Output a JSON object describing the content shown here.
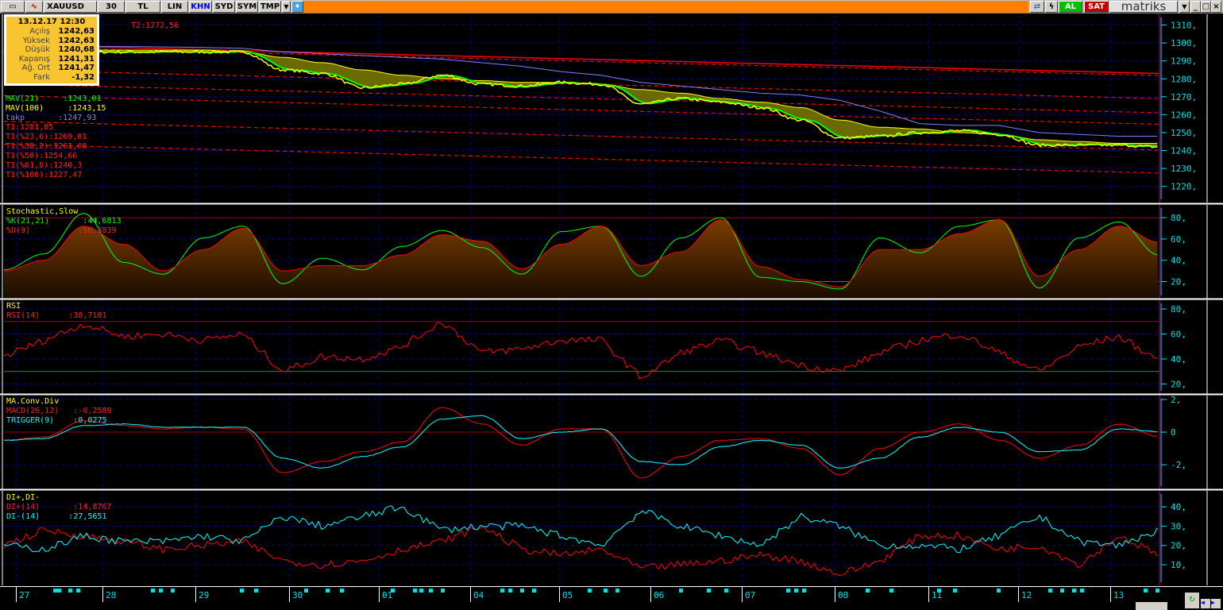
{
  "toolbar": {
    "symbol": "XAUUSD",
    "period": "30",
    "currency": "TL",
    "scale": "LIN",
    "kahn": "KHN",
    "syd": "SYD",
    "sym": "SYM",
    "tmp": "TMP",
    "buy": "AL",
    "sell": "SAT",
    "brand": "matriks",
    "icons": [
      "chart-type-icon",
      "indicator-icon",
      "dropdown-icon",
      "twitter-icon",
      "refresh-icon",
      "lightning-icon",
      "minimize-icon",
      "maximize-icon",
      "close-icon"
    ],
    "kahn_color": "#0000ff",
    "buy_color": "#00c000",
    "sell_color": "#c00000"
  },
  "info": {
    "datetime": "13.12.17 12:30",
    "rows": [
      {
        "label": "Açılış",
        "value": "1242,63"
      },
      {
        "label": "Yüksek",
        "value": "1242,63"
      },
      {
        "label": "Düşük",
        "value": "1240,68"
      },
      {
        "label": "Kapanış",
        "value": "1241,31"
      },
      {
        "label": "Ağ. Ort",
        "value": "1241,47"
      },
      {
        "label": "Fark",
        "value": "-1,32"
      }
    ]
  },
  "price_legend": {
    "t2": "T2:1272,56",
    "mav21": "MAV(21)     :1243,01",
    "mav100": "MAV(100)     :1243,15",
    "takp": "takp       :1247,93",
    "t1": "T1:1281,85",
    "t1_236": "T1(%23,6):1269,01",
    "t1_382": "T1(%38,2):1261,08",
    "t1_50": "T1(%50):1254,66",
    "t1_618": "T1(%61,8):1240,3",
    "t1_100": "T1(%100):1227,47"
  },
  "stoch_legend": {
    "title": "Stochastic,Slow",
    "k": "%K(21,21)       :44,6813",
    "d": "%D(9)          :56,5839"
  },
  "rsi_legend": {
    "title": "RSI",
    "rsi": "RSI(14)      :38,7181"
  },
  "macd_legend": {
    "title": "MA.Conv.Div",
    "macd": "MACD(26,12)   :-0,2589",
    "trigger": "TRIGGER(9)    :0,0275"
  },
  "di_legend": {
    "title": "DI+,DI-",
    "plus": "DI+(14)       :14,8767",
    "minus": "DI-(14)      :27,5651"
  },
  "time_axis": [
    "27",
    "28",
    "29",
    "30",
    "01",
    "04",
    "05",
    "06",
    "07",
    "08",
    "11",
    "12",
    "13"
  ],
  "colors": {
    "close": "#ffff00",
    "mav21": "#00ff00",
    "mav100": "#ffff00",
    "takp": "#8080ff",
    "fib": "#ff0000",
    "stochK": "#00ff00",
    "stochD": "#ff0000",
    "rsi": "#ff0000",
    "macd": "#ff0000",
    "trigger": "#00ffff",
    "diplus": "#ff0000",
    "diminus": "#00ffff",
    "axis": "#00e0e0"
  },
  "chart_data": [
    {
      "type": "line",
      "panel": "price",
      "ylim": [
        1211,
        1316
      ],
      "yticks": [
        1310,
        1300,
        1290,
        1280,
        1270,
        1260,
        1250,
        1240,
        1230,
        1220
      ],
      "series": [
        {
          "name": "close",
          "values": [
            1296,
            1296,
            1295,
            1295,
            1295,
            1295,
            1295,
            1285,
            1283,
            1275,
            1277,
            1282,
            1277,
            1276,
            1278,
            1277,
            1266,
            1269,
            1267,
            1264,
            1257,
            1247,
            1248,
            1250,
            1251,
            1249,
            1243,
            1243,
            1243,
            1242
          ]
        },
        {
          "name": "MAV(100)",
          "values": [
            1296,
            1296,
            1296,
            1296,
            1296,
            1296,
            1295,
            1292,
            1289,
            1285,
            1282,
            1280,
            1279,
            1278,
            1278,
            1277,
            1274,
            1272,
            1269,
            1267,
            1264,
            1257,
            1253,
            1252,
            1250,
            1249,
            1246,
            1245,
            1244,
            1244
          ]
        },
        {
          "name": "takp",
          "values": [
            1298.5,
            1298.4,
            1298.2,
            1298,
            1297.8,
            1297.5,
            1297,
            1295,
            1294,
            1293,
            1292,
            1291,
            1289,
            1287,
            1284,
            1282,
            1278,
            1276,
            1274,
            1272,
            1271,
            1268,
            1262,
            1255,
            1254,
            1254,
            1250,
            1249,
            1248,
            1248
          ]
        }
      ],
      "trend_lines": {
        "T2": [
          1299,
          1283
        ],
        "T1": 1281.85,
        "T1(%23,6)": 1269.01,
        "T1(%38,2)": 1261.08,
        "T1(%50)": 1254.66,
        "T1(%61,8)": 1240.3,
        "T1(%100)": 1227.47
      }
    },
    {
      "type": "area",
      "panel": "stochastic",
      "ylim": [
        4,
        92
      ],
      "yticks": [
        80,
        60,
        40,
        20
      ],
      "levels": [
        80,
        20
      ],
      "series": [
        {
          "name": "%K(21,21)",
          "values": [
            31,
            46,
            84,
            38,
            27,
            61,
            72,
            18,
            42,
            31,
            53,
            68,
            52,
            27,
            67,
            72,
            25,
            61,
            80,
            24,
            20,
            13,
            61,
            47,
            72,
            78,
            14,
            61,
            76,
            45
          ]
        },
        {
          "name": "%D(9)",
          "values": [
            30,
            40,
            72,
            55,
            30,
            50,
            70,
            30,
            35,
            35,
            45,
            64,
            58,
            32,
            55,
            72,
            35,
            48,
            78,
            34,
            22,
            15,
            50,
            50,
            65,
            78,
            25,
            50,
            72,
            57
          ]
        }
      ]
    },
    {
      "type": "line",
      "panel": "rsi",
      "ylim": [
        12,
        87
      ],
      "yticks": [
        80,
        60,
        40,
        20
      ],
      "levels": [
        70,
        30
      ],
      "series": [
        {
          "name": "RSI(14)",
          "values": [
            42,
            55,
            68,
            58,
            60,
            55,
            60,
            30,
            42,
            40,
            50,
            70,
            45,
            48,
            55,
            55,
            25,
            45,
            55,
            45,
            35,
            30,
            45,
            55,
            60,
            45,
            30,
            50,
            58,
            39
          ]
        }
      ]
    },
    {
      "type": "line",
      "panel": "macd",
      "ylim": [
        -3.5,
        2.24
      ],
      "yticks": [
        2,
        0,
        -2
      ],
      "levels": [
        0
      ],
      "series": [
        {
          "name": "MACD(26,12)",
          "values": [
            -0.5,
            -0.3,
            0.7,
            0.4,
            0.2,
            0.3,
            0.2,
            -2.5,
            -1.8,
            -1.2,
            -0.6,
            1.5,
            0.5,
            -0.8,
            0.2,
            0.2,
            -2.8,
            -1.5,
            -0.5,
            -0.4,
            -1.0,
            -2.6,
            -1.0,
            0,
            0.5,
            -0.5,
            -1.6,
            -0.8,
            0.5,
            -0.26
          ]
        },
        {
          "name": "TRIGGER(9)",
          "values": [
            -0.5,
            -0.4,
            0.4,
            0.5,
            0.3,
            0.3,
            0.3,
            -1.6,
            -2.2,
            -1.5,
            -0.9,
            0.8,
            1.0,
            -0.4,
            0,
            0.2,
            -1.8,
            -2.0,
            -0.9,
            -0.5,
            -0.8,
            -2.2,
            -1.6,
            -0.3,
            0.3,
            0,
            -1.2,
            -1.1,
            0.2,
            0.03
          ]
        }
      ]
    },
    {
      "type": "line",
      "panel": "di",
      "ylim": [
        -0.7,
        48.3
      ],
      "yticks": [
        40,
        30,
        20,
        10
      ],
      "series": [
        {
          "name": "DI+(14)",
          "values": [
            20,
            28,
            25,
            22,
            18,
            20,
            22,
            12,
            10,
            12,
            18,
            22,
            30,
            18,
            15,
            18,
            8,
            10,
            12,
            15,
            12,
            5,
            12,
            25,
            25,
            18,
            20,
            10,
            25,
            15
          ]
        },
        {
          "name": "DI-(14)",
          "values": [
            20,
            18,
            25,
            22,
            22,
            25,
            22,
            35,
            30,
            35,
            40,
            28,
            30,
            30,
            25,
            20,
            38,
            30,
            25,
            20,
            35,
            30,
            20,
            20,
            18,
            25,
            35,
            22,
            20,
            28
          ]
        }
      ]
    }
  ]
}
